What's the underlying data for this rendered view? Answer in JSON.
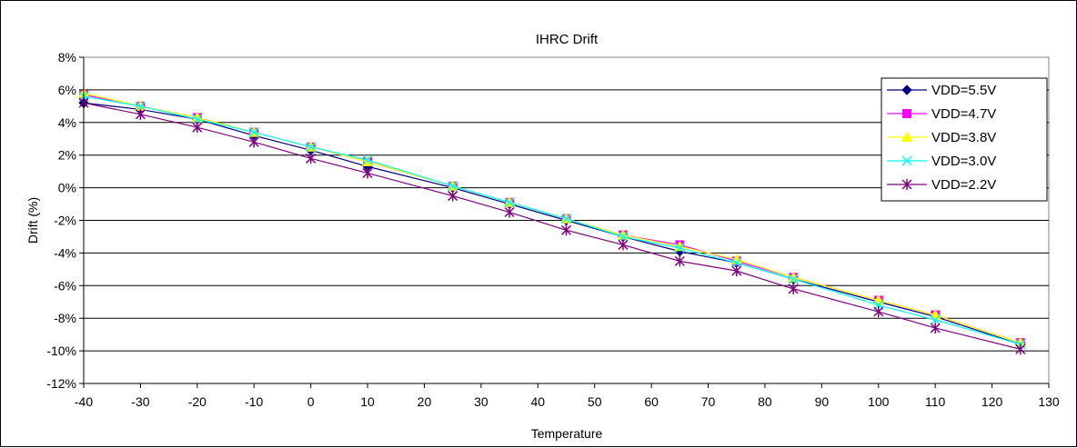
{
  "chart_data": {
    "type": "line",
    "title": "IHRC Drift",
    "xlabel": "Temperature",
    "ylabel": "Drift (%)",
    "xlim": [
      -40,
      130
    ],
    "ylim": [
      -12,
      8
    ],
    "x_ticks": [
      "-40",
      "-30",
      "-20",
      "-10",
      "0",
      "10",
      "20",
      "30",
      "40",
      "50",
      "60",
      "70",
      "80",
      "90",
      "100",
      "110",
      "120",
      "130"
    ],
    "y_ticks": [
      "8%",
      "6%",
      "4%",
      "2%",
      "0%",
      "-2%",
      "-4%",
      "-6%",
      "-8%",
      "-10%",
      "-12%"
    ],
    "grid": "horizontal",
    "legend_position": "right",
    "x": [
      -40,
      -30,
      -20,
      -10,
      0,
      10,
      25,
      35,
      45,
      55,
      65,
      75,
      85,
      100,
      110,
      125
    ],
    "series": [
      {
        "name": "VDD=5.5V",
        "color": "#000080",
        "marker": "diamond",
        "values": [
          5.2,
          4.8,
          4.2,
          3.2,
          2.3,
          1.3,
          0.0,
          -1.0,
          -2.0,
          -3.0,
          -3.9,
          -4.6,
          -5.6,
          -7.0,
          -7.9,
          -9.6
        ]
      },
      {
        "name": "VDD=4.7V",
        "color": "#ff00ff",
        "marker": "square",
        "values": [
          5.7,
          5.0,
          4.3,
          3.4,
          2.5,
          1.6,
          0.1,
          -0.9,
          -1.9,
          -2.9,
          -3.5,
          -4.5,
          -5.5,
          -6.9,
          -7.8,
          -9.5
        ]
      },
      {
        "name": "VDD=3.8V",
        "color": "#ffff00",
        "marker": "triangle",
        "values": [
          5.8,
          5.0,
          4.3,
          3.4,
          2.5,
          1.6,
          0.1,
          -0.9,
          -1.9,
          -2.9,
          -3.6,
          -4.4,
          -5.5,
          -6.9,
          -7.8,
          -9.5
        ]
      },
      {
        "name": "VDD=3.0V",
        "color": "#00ffff",
        "marker": "x",
        "values": [
          5.6,
          5.0,
          4.2,
          3.4,
          2.5,
          1.7,
          0.1,
          -0.9,
          -1.9,
          -3.0,
          -3.7,
          -4.6,
          -5.6,
          -7.2,
          -8.1,
          -9.6
        ]
      },
      {
        "name": "VDD=2.2V",
        "color": "#800080",
        "marker": "star",
        "values": [
          5.2,
          4.5,
          3.7,
          2.8,
          1.8,
          0.9,
          -0.5,
          -1.5,
          -2.6,
          -3.5,
          -4.5,
          -5.1,
          -6.2,
          -7.6,
          -8.6,
          -9.9
        ]
      }
    ]
  }
}
